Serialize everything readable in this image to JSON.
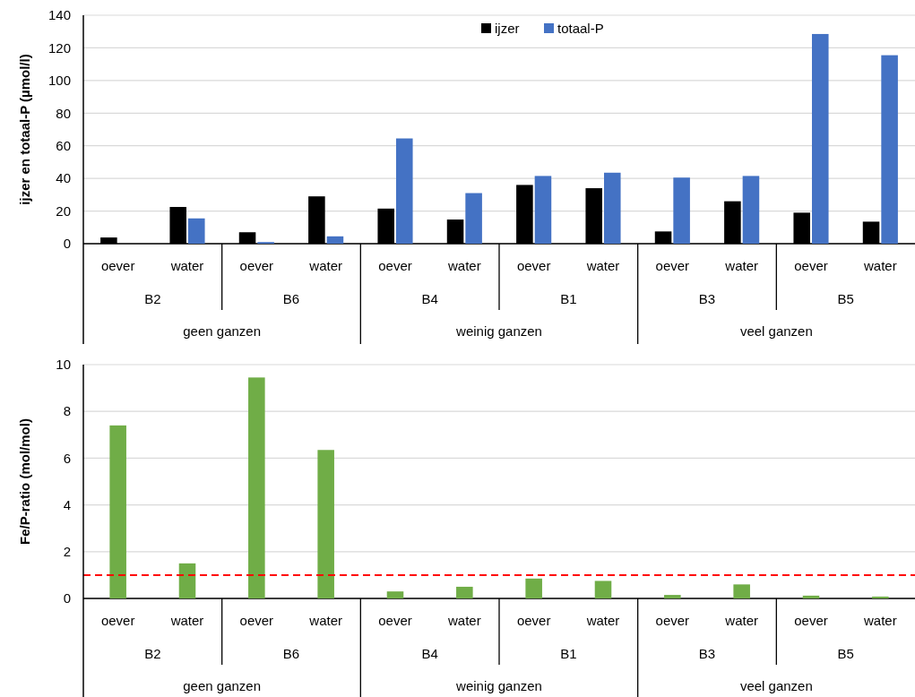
{
  "chart_data": [
    {
      "type": "bar",
      "ylabel": "ijzer en totaal-P (µmol/l)",
      "categories": [
        "oever",
        "water",
        "oever",
        "water",
        "oever",
        "water",
        "oever",
        "water",
        "oever",
        "water",
        "oever",
        "water"
      ],
      "series": [
        {
          "name": "ijzer",
          "color": "#000000",
          "values": [
            3.8,
            22.5,
            7,
            29,
            21.5,
            14.8,
            36,
            34,
            7.5,
            26,
            19,
            13.5
          ]
        },
        {
          "name": "totaal-P",
          "color": "#4472c4",
          "values": [
            0,
            15.5,
            1,
            4.5,
            64.5,
            31,
            41.5,
            43.5,
            40.5,
            41.5,
            128.5,
            115.5
          ]
        }
      ],
      "ylim": [
        0,
        140
      ],
      "yticks": [
        0,
        20,
        40,
        60,
        80,
        100,
        120,
        140
      ],
      "grid": "y",
      "legend": "top",
      "annotations": [
        "B2",
        "B6",
        "B4",
        "B1",
        "B3",
        "B5",
        "geen ganzen",
        "weinig ganzen",
        "veel ganzen"
      ]
    },
    {
      "type": "bar",
      "ylabel": "Fe/P-ratio (mol/mol)",
      "categories": [
        "oever",
        "water",
        "oever",
        "water",
        "oever",
        "water",
        "oever",
        "water",
        "oever",
        "water",
        "oever",
        "water"
      ],
      "series": [
        {
          "color": "#70ad47",
          "values": [
            7.4,
            1.5,
            9.45,
            6.35,
            0.3,
            0.5,
            0.85,
            0.75,
            0.15,
            0.6,
            0.12,
            0.08
          ]
        }
      ],
      "ylim": [
        0,
        10
      ],
      "yticks": [
        0,
        2,
        4,
        6,
        8,
        10
      ],
      "grid": "y",
      "ref_lines": [
        {
          "axis": "y",
          "value": 1,
          "color": "#ff0000",
          "line_style": "dashed"
        }
      ],
      "annotations": [
        "B2",
        "B6",
        "B4",
        "B1",
        "B3",
        "B5",
        "geen ganzen",
        "weinig ganzen",
        "veel ganzen"
      ]
    }
  ]
}
